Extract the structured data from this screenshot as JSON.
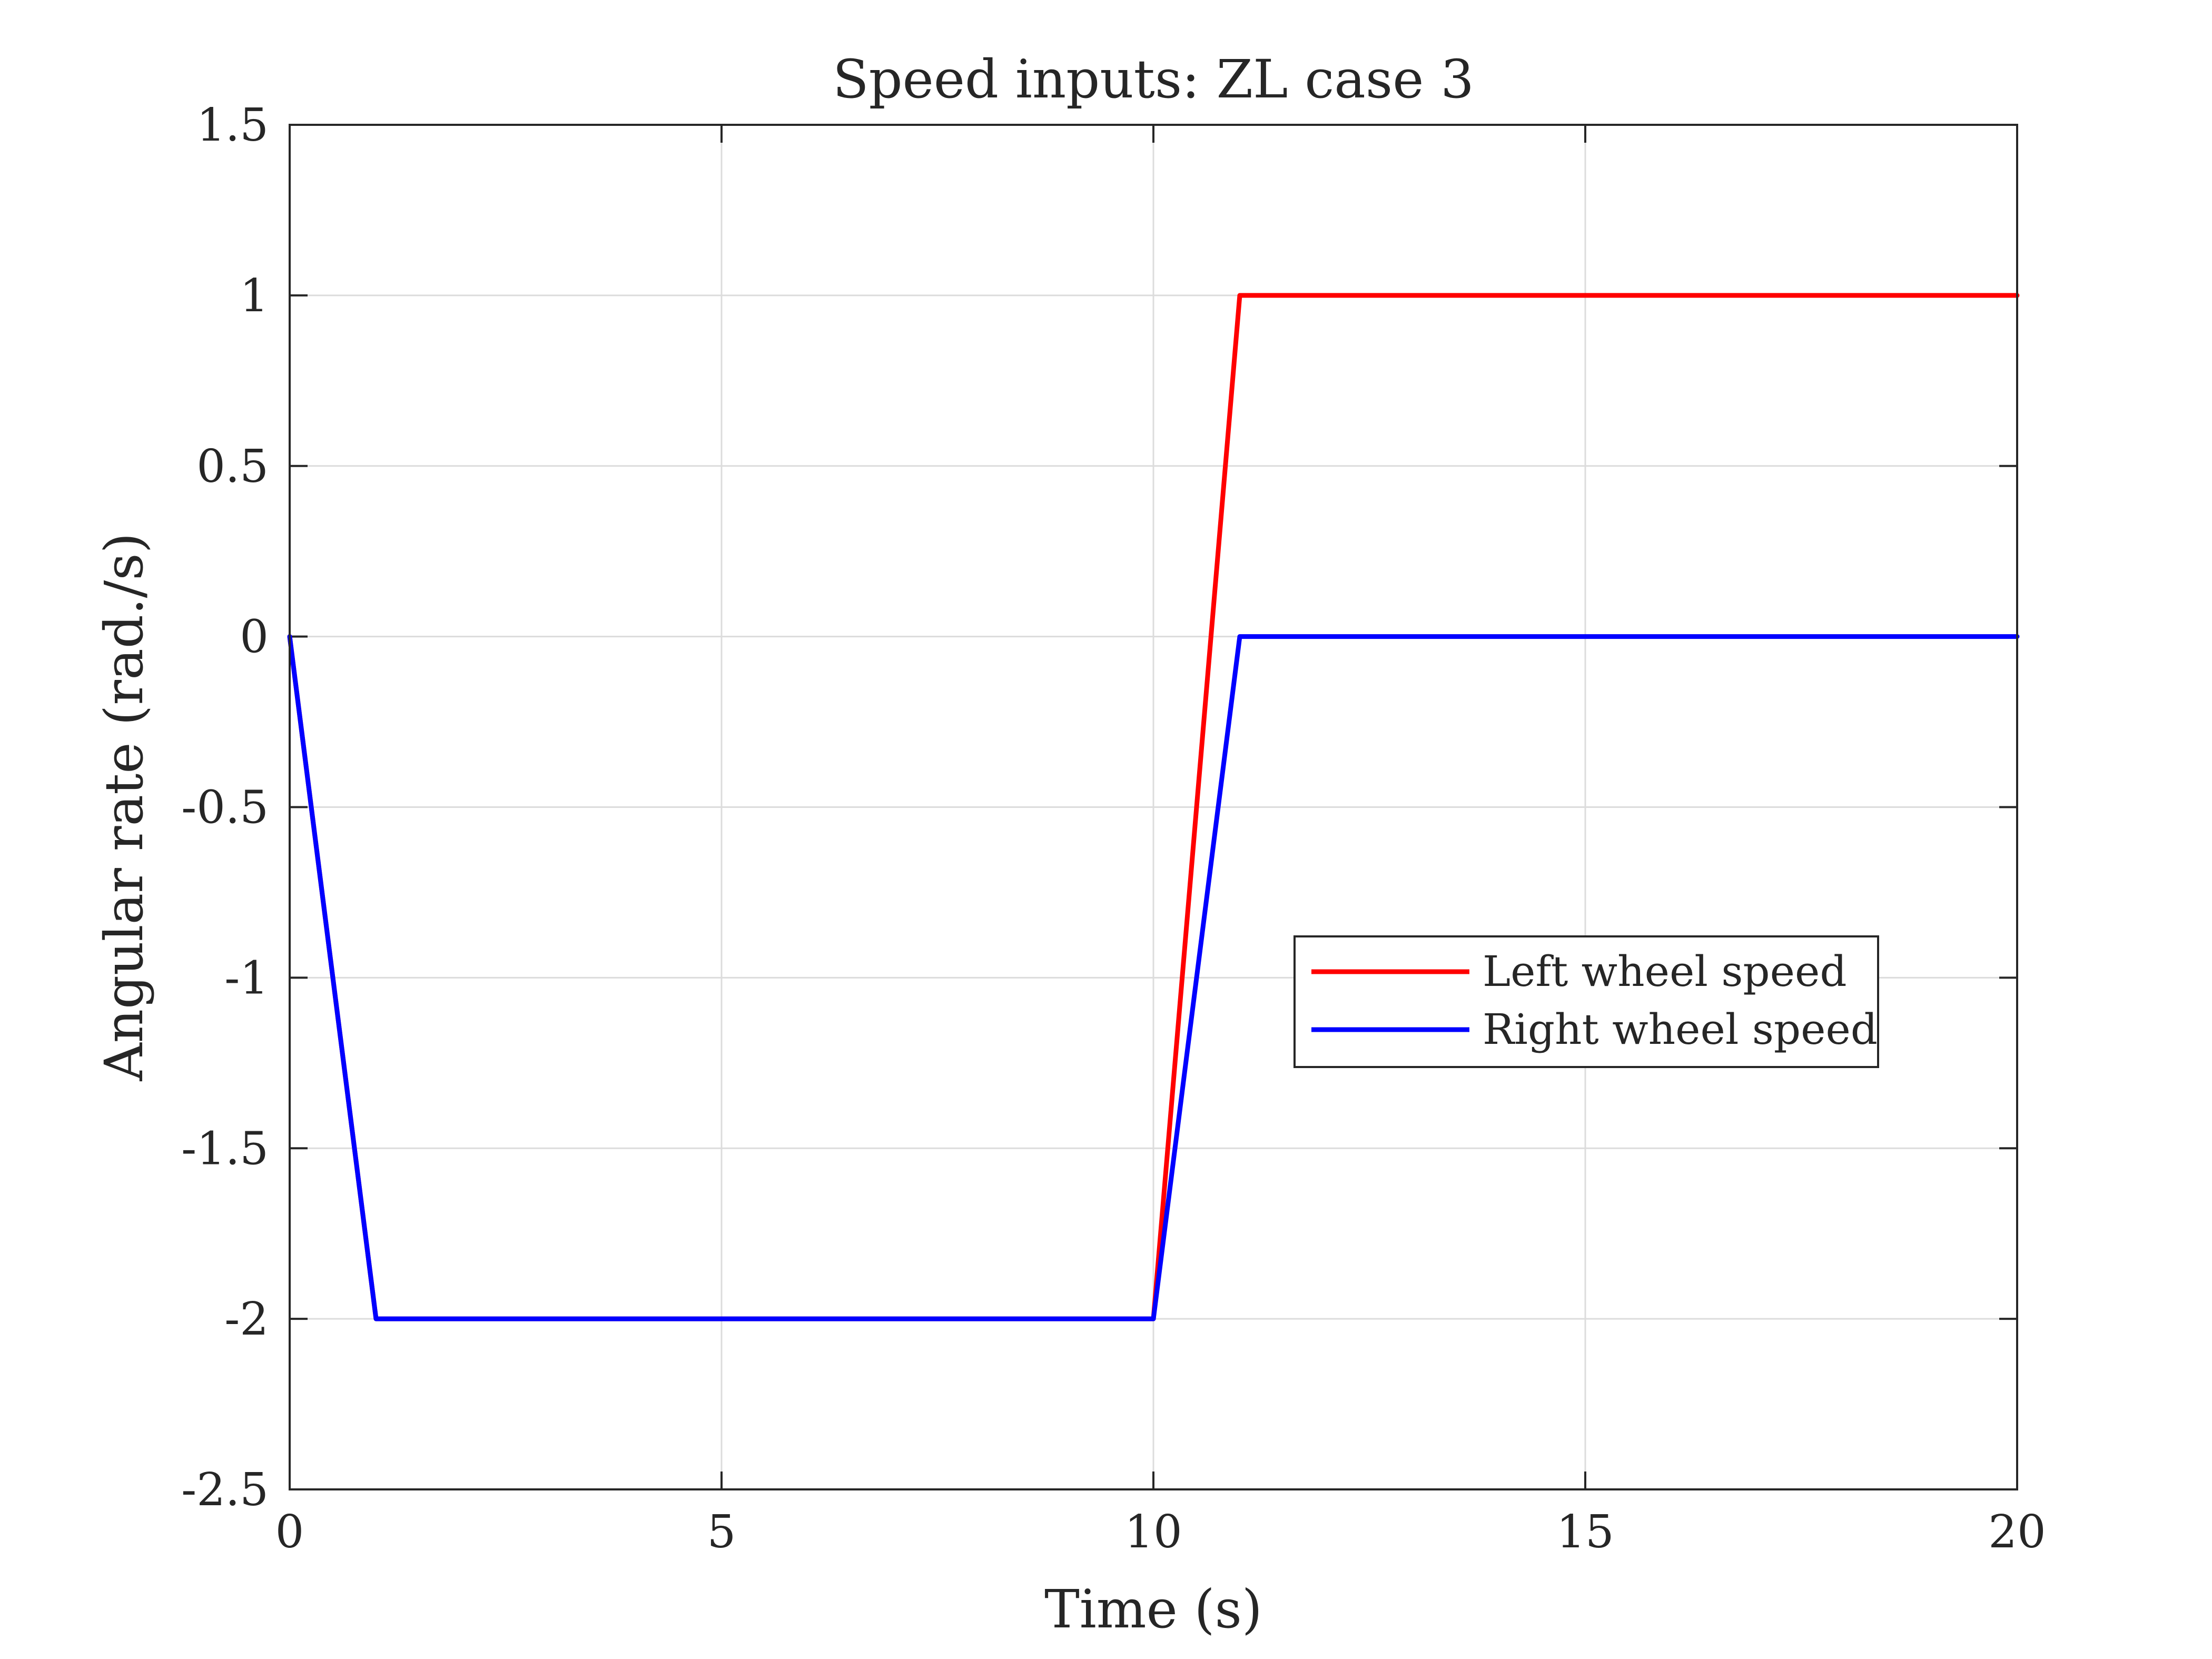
{
  "chart_data": {
    "type": "line",
    "title": "Speed inputs: ZL case 3",
    "xlabel": "Time (s)",
    "ylabel": "Angular rate (rad./s)",
    "xlim": [
      0,
      20
    ],
    "ylim": [
      -2.5,
      1.5
    ],
    "xticks": [
      0,
      5,
      10,
      15,
      20
    ],
    "xtick_labels": [
      "0",
      "5",
      "10",
      "15",
      "20"
    ],
    "yticks": [
      1.5,
      1,
      0.5,
      0,
      -0.5,
      -1,
      -1.5,
      -2,
      -2.5
    ],
    "ytick_labels": [
      "1.5",
      "1",
      "0.5",
      "0",
      "-0.5",
      "-1",
      "-1.5",
      "-2",
      "-2.5"
    ],
    "grid": true,
    "legend_position": "right-center",
    "series": [
      {
        "name": "Left wheel speed",
        "color": "#ff0000",
        "x": [
          0,
          1,
          10,
          11,
          20
        ],
        "y": [
          0,
          -2,
          -2,
          1,
          1
        ]
      },
      {
        "name": "Right wheel speed",
        "color": "#0000ff",
        "x": [
          0,
          1,
          10,
          11,
          20
        ],
        "y": [
          0,
          -2,
          -2,
          0,
          0
        ]
      }
    ]
  }
}
